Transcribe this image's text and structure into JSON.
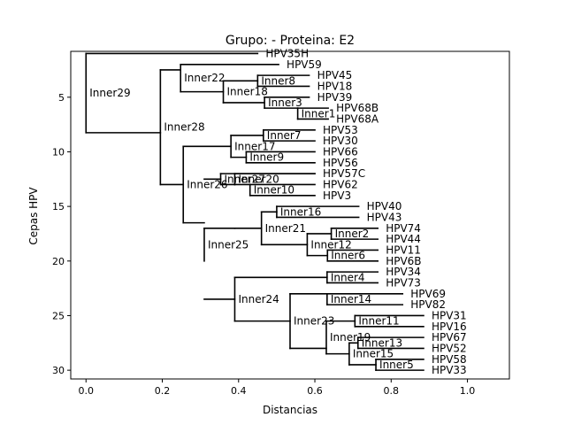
{
  "chart_data": {
    "type": "dendrogram",
    "title": "Grupo:  - Proteina: E2",
    "xlabel": "Distancias",
    "ylabel": "Cepas HPV",
    "xlim": [
      -0.04,
      1.11
    ],
    "ylim": [
      30.8,
      0.8
    ],
    "y_axis_inverted": true,
    "x_ticks": [
      {
        "v": 0.0,
        "label": "0.0"
      },
      {
        "v": 0.2,
        "label": "0.2"
      },
      {
        "v": 0.4,
        "label": "0.4"
      },
      {
        "v": 0.6,
        "label": "0.6"
      },
      {
        "v": 0.8,
        "label": "0.8"
      },
      {
        "v": 1.0,
        "label": "1.0"
      }
    ],
    "y_ticks": [
      {
        "v": 5,
        "label": "5"
      },
      {
        "v": 10,
        "label": "10"
      },
      {
        "v": 15,
        "label": "15"
      },
      {
        "v": 20,
        "label": "20"
      },
      {
        "v": 25,
        "label": "25"
      },
      {
        "v": 30,
        "label": "30"
      }
    ],
    "clades": [
      {
        "name": "Inner29",
        "x": 0.0,
        "y_top": 1.0,
        "y_bot": 8.25
      },
      {
        "name": "Inner28",
        "x": 0.195,
        "y_top": 2.5,
        "y_bot": 13.0
      },
      {
        "name": "Inner22",
        "x": 0.248,
        "y_top": 2.0,
        "y_bot": 4.5
      },
      {
        "name": "Inner8",
        "x": 0.45,
        "y_top": 3.0,
        "y_bot": 4.0
      },
      {
        "name": "Inner18",
        "x": 0.36,
        "y_top": 3.5,
        "y_bot": 5.5
      },
      {
        "name": "Inner3",
        "x": 0.468,
        "y_top": 5.0,
        "y_bot": 6.0
      },
      {
        "name": "Inner1",
        "x": 0.555,
        "y_top": 6.0,
        "y_bot": 7.0
      },
      {
        "name": "Inner26",
        "x": 0.255,
        "y_top": 9.5,
        "y_bot": 16.5
      },
      {
        "name": "Inner17",
        "x": 0.38,
        "y_top": 8.5,
        "y_bot": 10.5
      },
      {
        "name": "Inner7",
        "x": 0.465,
        "y_top": 8.0,
        "y_bot": 9.0
      },
      {
        "name": "Inner9",
        "x": 0.42,
        "y_top": 10.0,
        "y_bot": 11.0
      },
      {
        "name": "Inner27",
        "x": 0.353,
        "y_top": 12.0,
        "y_bot": 13.0
      },
      {
        "name": "Inner20",
        "x": 0.39,
        "y_top": 12.0,
        "y_bot": 13.0
      },
      {
        "name": "Inner10",
        "x": 0.43,
        "y_top": 13.0,
        "y_bot": 14.0
      },
      {
        "name": "Inner25",
        "x": 0.31,
        "y_top": 17.0,
        "y_bot": 20.0
      },
      {
        "name": "Inner21",
        "x": 0.46,
        "y_top": 15.5,
        "y_bot": 18.5
      },
      {
        "name": "Inner16",
        "x": 0.5,
        "y_top": 15.0,
        "y_bot": 16.0
      },
      {
        "name": "Inner12",
        "x": 0.58,
        "y_top": 17.5,
        "y_bot": 19.5
      },
      {
        "name": "Inner2",
        "x": 0.643,
        "y_top": 17.0,
        "y_bot": 18.0
      },
      {
        "name": "Inner6",
        "x": 0.633,
        "y_top": 19.0,
        "y_bot": 20.0
      },
      {
        "name": "Inner24",
        "x": 0.39,
        "y_top": 21.5,
        "y_bot": 25.5
      },
      {
        "name": "Inner4",
        "x": 0.632,
        "y_top": 21.0,
        "y_bot": 22.0
      },
      {
        "name": "Inner23",
        "x": 0.535,
        "y_top": 23.0,
        "y_bot": 28.0
      },
      {
        "name": "Inner14",
        "x": 0.632,
        "y_top": 23.0,
        "y_bot": 24.0
      },
      {
        "name": "Inner19",
        "x": 0.63,
        "y_top": 25.5,
        "y_bot": 28.5
      },
      {
        "name": "Inner11",
        "x": 0.705,
        "y_top": 25.0,
        "y_bot": 26.0
      },
      {
        "name": "Inner15",
        "x": 0.69,
        "y_top": 27.5,
        "y_bot": 29.5
      },
      {
        "name": "Inner13",
        "x": 0.713,
        "y_top": 27.0,
        "y_bot": 28.0
      },
      {
        "name": "Inner5",
        "x": 0.76,
        "y_top": 29.0,
        "y_bot": 30.0
      }
    ],
    "edges": [
      [
        0.0,
        1.0,
        0.45
      ],
      [
        0.0,
        8.25,
        0.195
      ],
      [
        0.195,
        2.5,
        0.248
      ],
      [
        0.195,
        13.0,
        0.255
      ],
      [
        0.248,
        2.0,
        0.505
      ],
      [
        0.248,
        4.5,
        0.36
      ],
      [
        0.36,
        3.5,
        0.45
      ],
      [
        0.36,
        5.5,
        0.468
      ],
      [
        0.45,
        3.0,
        0.585
      ],
      [
        0.45,
        4.0,
        0.585
      ],
      [
        0.468,
        5.0,
        0.585
      ],
      [
        0.468,
        6.0,
        0.555
      ],
      [
        0.555,
        6.0,
        0.635
      ],
      [
        0.555,
        7.0,
        0.635
      ],
      [
        0.255,
        9.5,
        0.38
      ],
      [
        0.255,
        16.5,
        0.31
      ],
      [
        0.38,
        8.5,
        0.465
      ],
      [
        0.38,
        10.5,
        0.42
      ],
      [
        0.465,
        8.0,
        0.6
      ],
      [
        0.465,
        9.0,
        0.6
      ],
      [
        0.42,
        10.0,
        0.6
      ],
      [
        0.42,
        11.0,
        0.6
      ],
      [
        0.31,
        12.5,
        0.353
      ],
      [
        0.31,
        20.0,
        0.31
      ],
      [
        0.353,
        12.0,
        0.6
      ],
      [
        0.353,
        13.0,
        0.39
      ],
      [
        0.39,
        12.0,
        0.6
      ],
      [
        0.39,
        13.0,
        0.43
      ],
      [
        0.43,
        13.0,
        0.6
      ],
      [
        0.43,
        14.0,
        0.6
      ],
      [
        0.31,
        17.0,
        0.39
      ],
      [
        0.31,
        23.5,
        0.39
      ],
      [
        0.39,
        17.0,
        0.46
      ],
      [
        0.46,
        15.5,
        0.5
      ],
      [
        0.46,
        18.5,
        0.58
      ],
      [
        0.5,
        15.0,
        0.715
      ],
      [
        0.5,
        16.0,
        0.715
      ],
      [
        0.58,
        17.5,
        0.643
      ],
      [
        0.58,
        19.5,
        0.633
      ],
      [
        0.643,
        17.0,
        0.765
      ],
      [
        0.643,
        18.0,
        0.765
      ],
      [
        0.633,
        19.0,
        0.765
      ],
      [
        0.633,
        20.0,
        0.765
      ],
      [
        0.39,
        21.5,
        0.632
      ],
      [
        0.39,
        25.5,
        0.535
      ],
      [
        0.632,
        21.0,
        0.765
      ],
      [
        0.632,
        22.0,
        0.765
      ],
      [
        0.535,
        23.0,
        0.632
      ],
      [
        0.535,
        28.0,
        0.63
      ],
      [
        0.632,
        23.0,
        0.83
      ],
      [
        0.632,
        24.0,
        0.83
      ],
      [
        0.63,
        25.5,
        0.705
      ],
      [
        0.63,
        28.5,
        0.69
      ],
      [
        0.705,
        25.0,
        0.885
      ],
      [
        0.705,
        26.0,
        0.885
      ],
      [
        0.69,
        27.5,
        0.713
      ],
      [
        0.69,
        29.5,
        0.76
      ],
      [
        0.713,
        27.0,
        0.885
      ],
      [
        0.713,
        28.0,
        0.885
      ],
      [
        0.76,
        29.0,
        0.885
      ],
      [
        0.76,
        30.0,
        0.885
      ]
    ],
    "leaves": [
      {
        "name": "HPV35H",
        "y": 1,
        "x": 0.45
      },
      {
        "name": "HPV59",
        "y": 2,
        "x": 0.505
      },
      {
        "name": "HPV45",
        "y": 3,
        "x": 0.585
      },
      {
        "name": "HPV18",
        "y": 4,
        "x": 0.585
      },
      {
        "name": "HPV39",
        "y": 5,
        "x": 0.585
      },
      {
        "name": "HPV68B",
        "y": 6,
        "x": 0.635
      },
      {
        "name": "HPV68A",
        "y": 7,
        "x": 0.635
      },
      {
        "name": "HPV53",
        "y": 8,
        "x": 0.6
      },
      {
        "name": "HPV30",
        "y": 9,
        "x": 0.6
      },
      {
        "name": "HPV66",
        "y": 10,
        "x": 0.6
      },
      {
        "name": "HPV56",
        "y": 11,
        "x": 0.6
      },
      {
        "name": "HPV57C",
        "y": 12,
        "x": 0.6
      },
      {
        "name": "HPV62",
        "y": 13,
        "x": 0.6
      },
      {
        "name": "HPV3",
        "y": 14,
        "x": 0.6
      },
      {
        "name": "HPV40",
        "y": 15,
        "x": 0.715
      },
      {
        "name": "HPV43",
        "y": 16,
        "x": 0.715
      },
      {
        "name": "HPV74",
        "y": 17,
        "x": 0.765
      },
      {
        "name": "HPV44",
        "y": 18,
        "x": 0.765
      },
      {
        "name": "HPV11",
        "y": 19,
        "x": 0.765
      },
      {
        "name": "HPV6B",
        "y": 20,
        "x": 0.765
      },
      {
        "name": "HPV34",
        "y": 21,
        "x": 0.765
      },
      {
        "name": "HPV73",
        "y": 22,
        "x": 0.765
      },
      {
        "name": "HPV69",
        "y": 23,
        "x": 0.83
      },
      {
        "name": "HPV82",
        "y": 24,
        "x": 0.83
      },
      {
        "name": "HPV31",
        "y": 25,
        "x": 0.885
      },
      {
        "name": "HPV16",
        "y": 26,
        "x": 0.885
      },
      {
        "name": "HPV67",
        "y": 27,
        "x": 0.885
      },
      {
        "name": "HPV52",
        "y": 28,
        "x": 0.885
      },
      {
        "name": "HPV58",
        "y": 29,
        "x": 0.885
      },
      {
        "name": "HPV33",
        "y": 30,
        "x": 0.885
      }
    ]
  }
}
